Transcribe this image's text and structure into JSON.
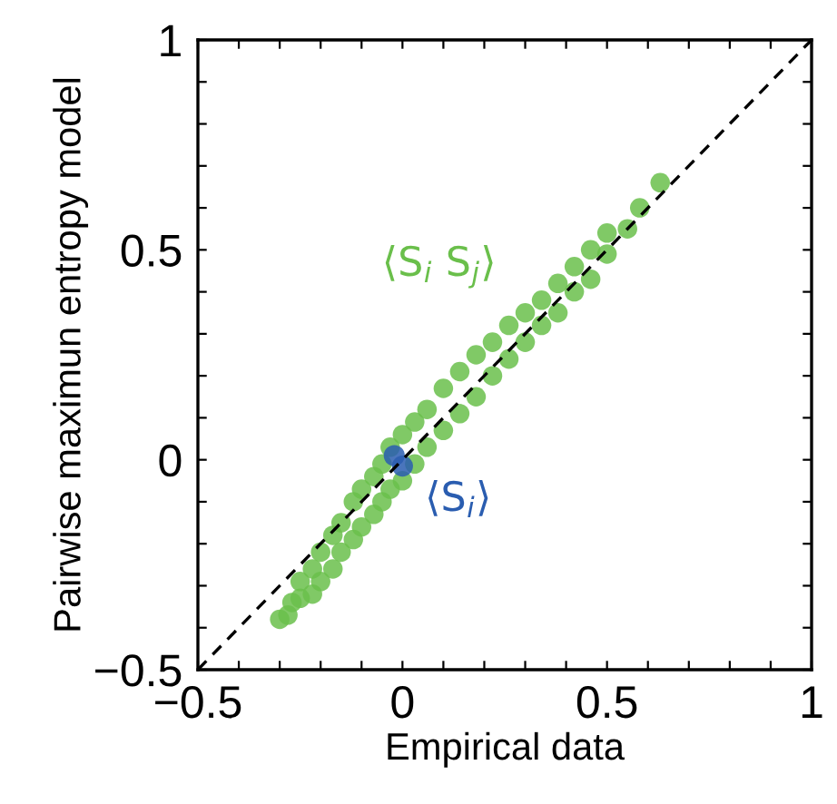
{
  "chart_data": {
    "type": "scatter",
    "xlabel": "Empirical data",
    "ylabel": "Pairwise maximun entropy model",
    "xlim": [
      -0.5,
      1
    ],
    "ylim": [
      -0.5,
      1
    ],
    "xticks": [
      {
        "value": -0.5,
        "label": "−0.5"
      },
      {
        "value": -0.4,
        "label": null
      },
      {
        "value": -0.3,
        "label": null
      },
      {
        "value": -0.2,
        "label": null
      },
      {
        "value": -0.1,
        "label": null
      },
      0,
      {
        "value": 0.1,
        "label": null
      },
      {
        "value": 0.2,
        "label": null
      },
      {
        "value": 0.3,
        "label": null
      },
      {
        "value": 0.4,
        "label": null
      },
      0.5,
      {
        "value": 0.6,
        "label": null
      },
      {
        "value": 0.7,
        "label": null
      },
      {
        "value": 0.8,
        "label": null
      },
      {
        "value": 0.9,
        "label": null
      },
      1
    ],
    "yticks": [
      {
        "value": -0.5,
        "label": "−0.5"
      },
      {
        "value": -0.4,
        "label": null
      },
      {
        "value": -0.3,
        "label": null
      },
      {
        "value": -0.2,
        "label": null
      },
      {
        "value": -0.1,
        "label": null
      },
      0,
      {
        "value": 0.1,
        "label": null
      },
      {
        "value": 0.2,
        "label": null
      },
      {
        "value": 0.3,
        "label": null
      },
      {
        "value": 0.4,
        "label": null
      },
      0.5,
      {
        "value": 0.6,
        "label": null
      },
      {
        "value": 0.7,
        "label": null
      },
      {
        "value": 0.8,
        "label": null
      },
      {
        "value": 0.9,
        "label": null
      },
      1
    ],
    "series": [
      {
        "name": "⟨S$_{i}$ S$_{j}$⟩",
        "color": "#6abf4b",
        "marker": "circle",
        "x": [
          -0.3,
          -0.28,
          -0.27,
          -0.25,
          -0.25,
          -0.22,
          -0.22,
          -0.2,
          -0.2,
          -0.17,
          -0.17,
          -0.15,
          -0.15,
          -0.12,
          -0.12,
          -0.1,
          -0.1,
          -0.07,
          -0.07,
          -0.05,
          -0.05,
          -0.03,
          -0.03,
          0,
          0,
          0.03,
          0.03,
          0.06,
          0.06,
          0.1,
          0.1,
          0.14,
          0.14,
          0.18,
          0.18,
          0.22,
          0.22,
          0.26,
          0.26,
          0.3,
          0.3,
          0.34,
          0.34,
          0.38,
          0.38,
          0.42,
          0.42,
          0.46,
          0.46,
          0.5,
          0.5,
          0.55,
          0.58,
          0.63
        ],
        "values": [
          -0.38,
          -0.37,
          -0.34,
          -0.33,
          -0.29,
          -0.32,
          -0.26,
          -0.29,
          -0.22,
          -0.26,
          -0.18,
          -0.22,
          -0.15,
          -0.19,
          -0.1,
          -0.16,
          -0.07,
          -0.13,
          -0.04,
          -0.1,
          -0.01,
          -0.07,
          0.03,
          -0.05,
          0.06,
          -0.01,
          0.09,
          0.03,
          0.12,
          0.07,
          0.17,
          0.11,
          0.21,
          0.15,
          0.25,
          0.2,
          0.28,
          0.24,
          0.32,
          0.28,
          0.35,
          0.32,
          0.38,
          0.35,
          0.42,
          0.4,
          0.46,
          0.43,
          0.5,
          0.49,
          0.54,
          0.55,
          0.6,
          0.66
        ]
      },
      {
        "name": "⟨S$_{i}$⟩",
        "color": "#2a5db0",
        "marker": "circle",
        "x": [
          -0.02,
          0
        ],
        "values": [
          0.01,
          -0.015
        ]
      },
      {
        "type": "line",
        "color": "#000000",
        "line_style": "dashed",
        "marker": "none",
        "x": [
          -0.5,
          1
        ],
        "values": [
          -0.5,
          1
        ]
      }
    ]
  }
}
